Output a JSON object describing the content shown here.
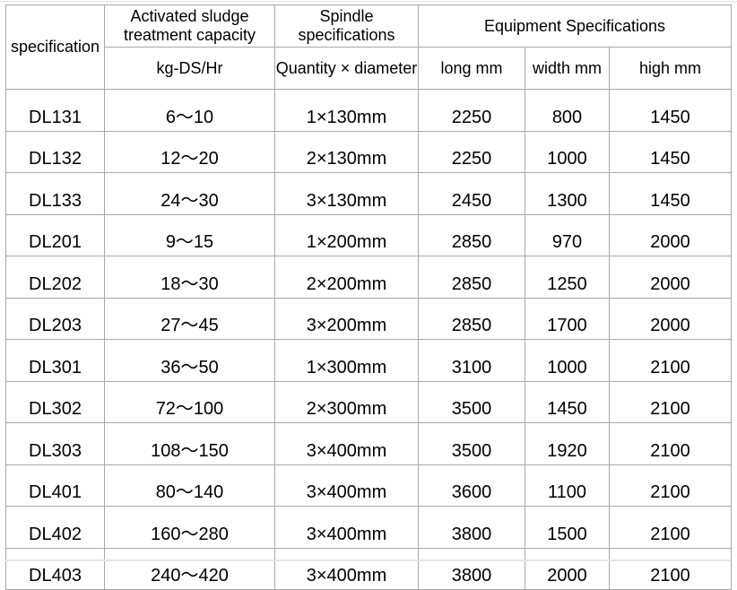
{
  "header": {
    "specification": "specification",
    "capacity": "Activated sludge treatment capacity",
    "capacity_unit": "kg-DS/Hr",
    "spindle": "Spindle specifications",
    "spindle_unit": "Quantity × diameter",
    "equipment": "Equipment Specifications",
    "long": "long mm",
    "width": "width mm",
    "high": "high mm"
  },
  "rows": [
    [
      "DL131",
      "6～10",
      "1×130mm",
      "2250",
      "800",
      "1450"
    ],
    [
      "DL132",
      "12～20",
      "2×130mm",
      "2250",
      "1000",
      "1450"
    ],
    [
      "DL133",
      "24～30",
      "3×130mm",
      "2450",
      "1300",
      "1450"
    ],
    [
      "DL201",
      "9～15",
      "1×200mm",
      "2850",
      "970",
      "2000"
    ],
    [
      "DL202",
      "18～30",
      "2×200mm",
      "2850",
      "1250",
      "2000"
    ],
    [
      "DL203",
      "27～45",
      "3×200mm",
      "2850",
      "1700",
      "2000"
    ],
    [
      "DL301",
      "36～50",
      "1×300mm",
      "3100",
      "1000",
      "2100"
    ],
    [
      "DL302",
      "72～100",
      "2×300mm",
      "3500",
      "1450",
      "2100"
    ],
    [
      "DL303",
      "108～150",
      "3×400mm",
      "3500",
      "1920",
      "2100"
    ],
    [
      "DL401",
      "80～140",
      "3×400mm",
      "3600",
      "1100",
      "2100"
    ],
    [
      "DL402",
      "160～280",
      "3×400mm",
      "3800",
      "1500",
      "2100"
    ],
    [
      "DL403",
      "240～420",
      "3×400mm",
      "3800",
      "2000",
      "2100"
    ]
  ]
}
